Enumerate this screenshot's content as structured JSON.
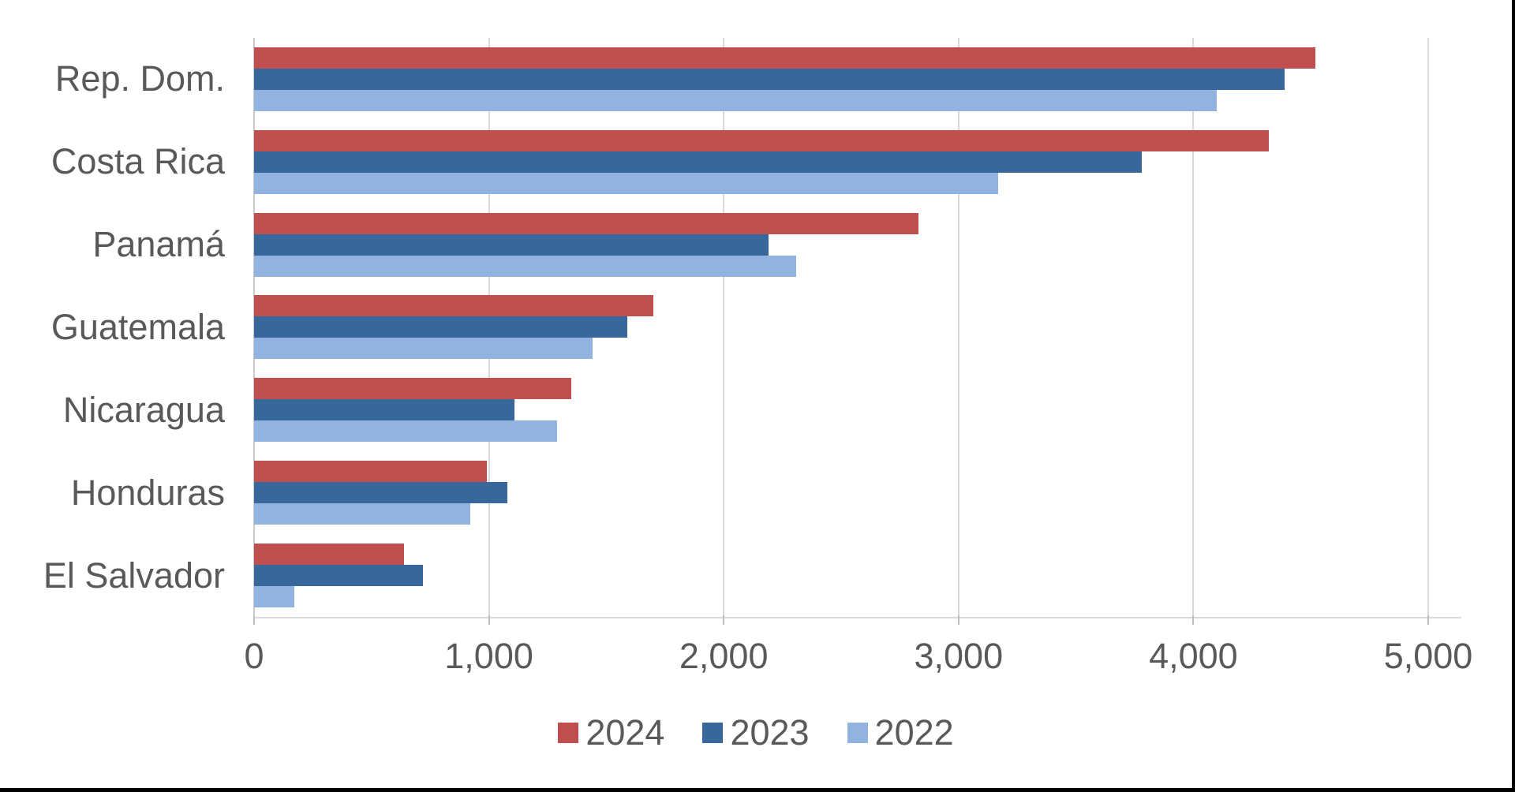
{
  "chart_data": {
    "type": "bar",
    "orientation": "horizontal",
    "title": "",
    "xlabel": "",
    "ylabel": "",
    "categories": [
      "Rep. Dom.",
      "Costa Rica",
      "Panamá",
      "Guatemala",
      "Nicaragua",
      "Honduras",
      "El Salvador"
    ],
    "series": [
      {
        "name": "2024",
        "color": "#C0504F",
        "values": [
          4520,
          4320,
          2830,
          1700,
          1350,
          990,
          640
        ]
      },
      {
        "name": "2023",
        "color": "#37679B",
        "values": [
          4390,
          3780,
          2190,
          1590,
          1110,
          1080,
          720
        ]
      },
      {
        "name": "2022",
        "color": "#92B3DF",
        "values": [
          4100,
          3170,
          2310,
          1440,
          1290,
          920,
          170
        ]
      }
    ],
    "xlim": [
      0,
      5000
    ],
    "x_ticks": [
      0,
      1000,
      2000,
      3000,
      4000,
      5000
    ],
    "x_tick_labels": [
      "0",
      "1,000",
      "2,000",
      "3,000",
      "4,000",
      "5,000"
    ],
    "grid": "vertical",
    "legend_position": "bottom",
    "legend_entries": [
      "2024",
      "2023",
      "2022"
    ]
  },
  "colors": {
    "gridline": "#D9D9D9",
    "axis_line": "#C9C9C9",
    "tick_mark": "#BFBFBF",
    "label_text": "#595959",
    "background": "#FFFFFF",
    "frame_border": "#000000"
  }
}
